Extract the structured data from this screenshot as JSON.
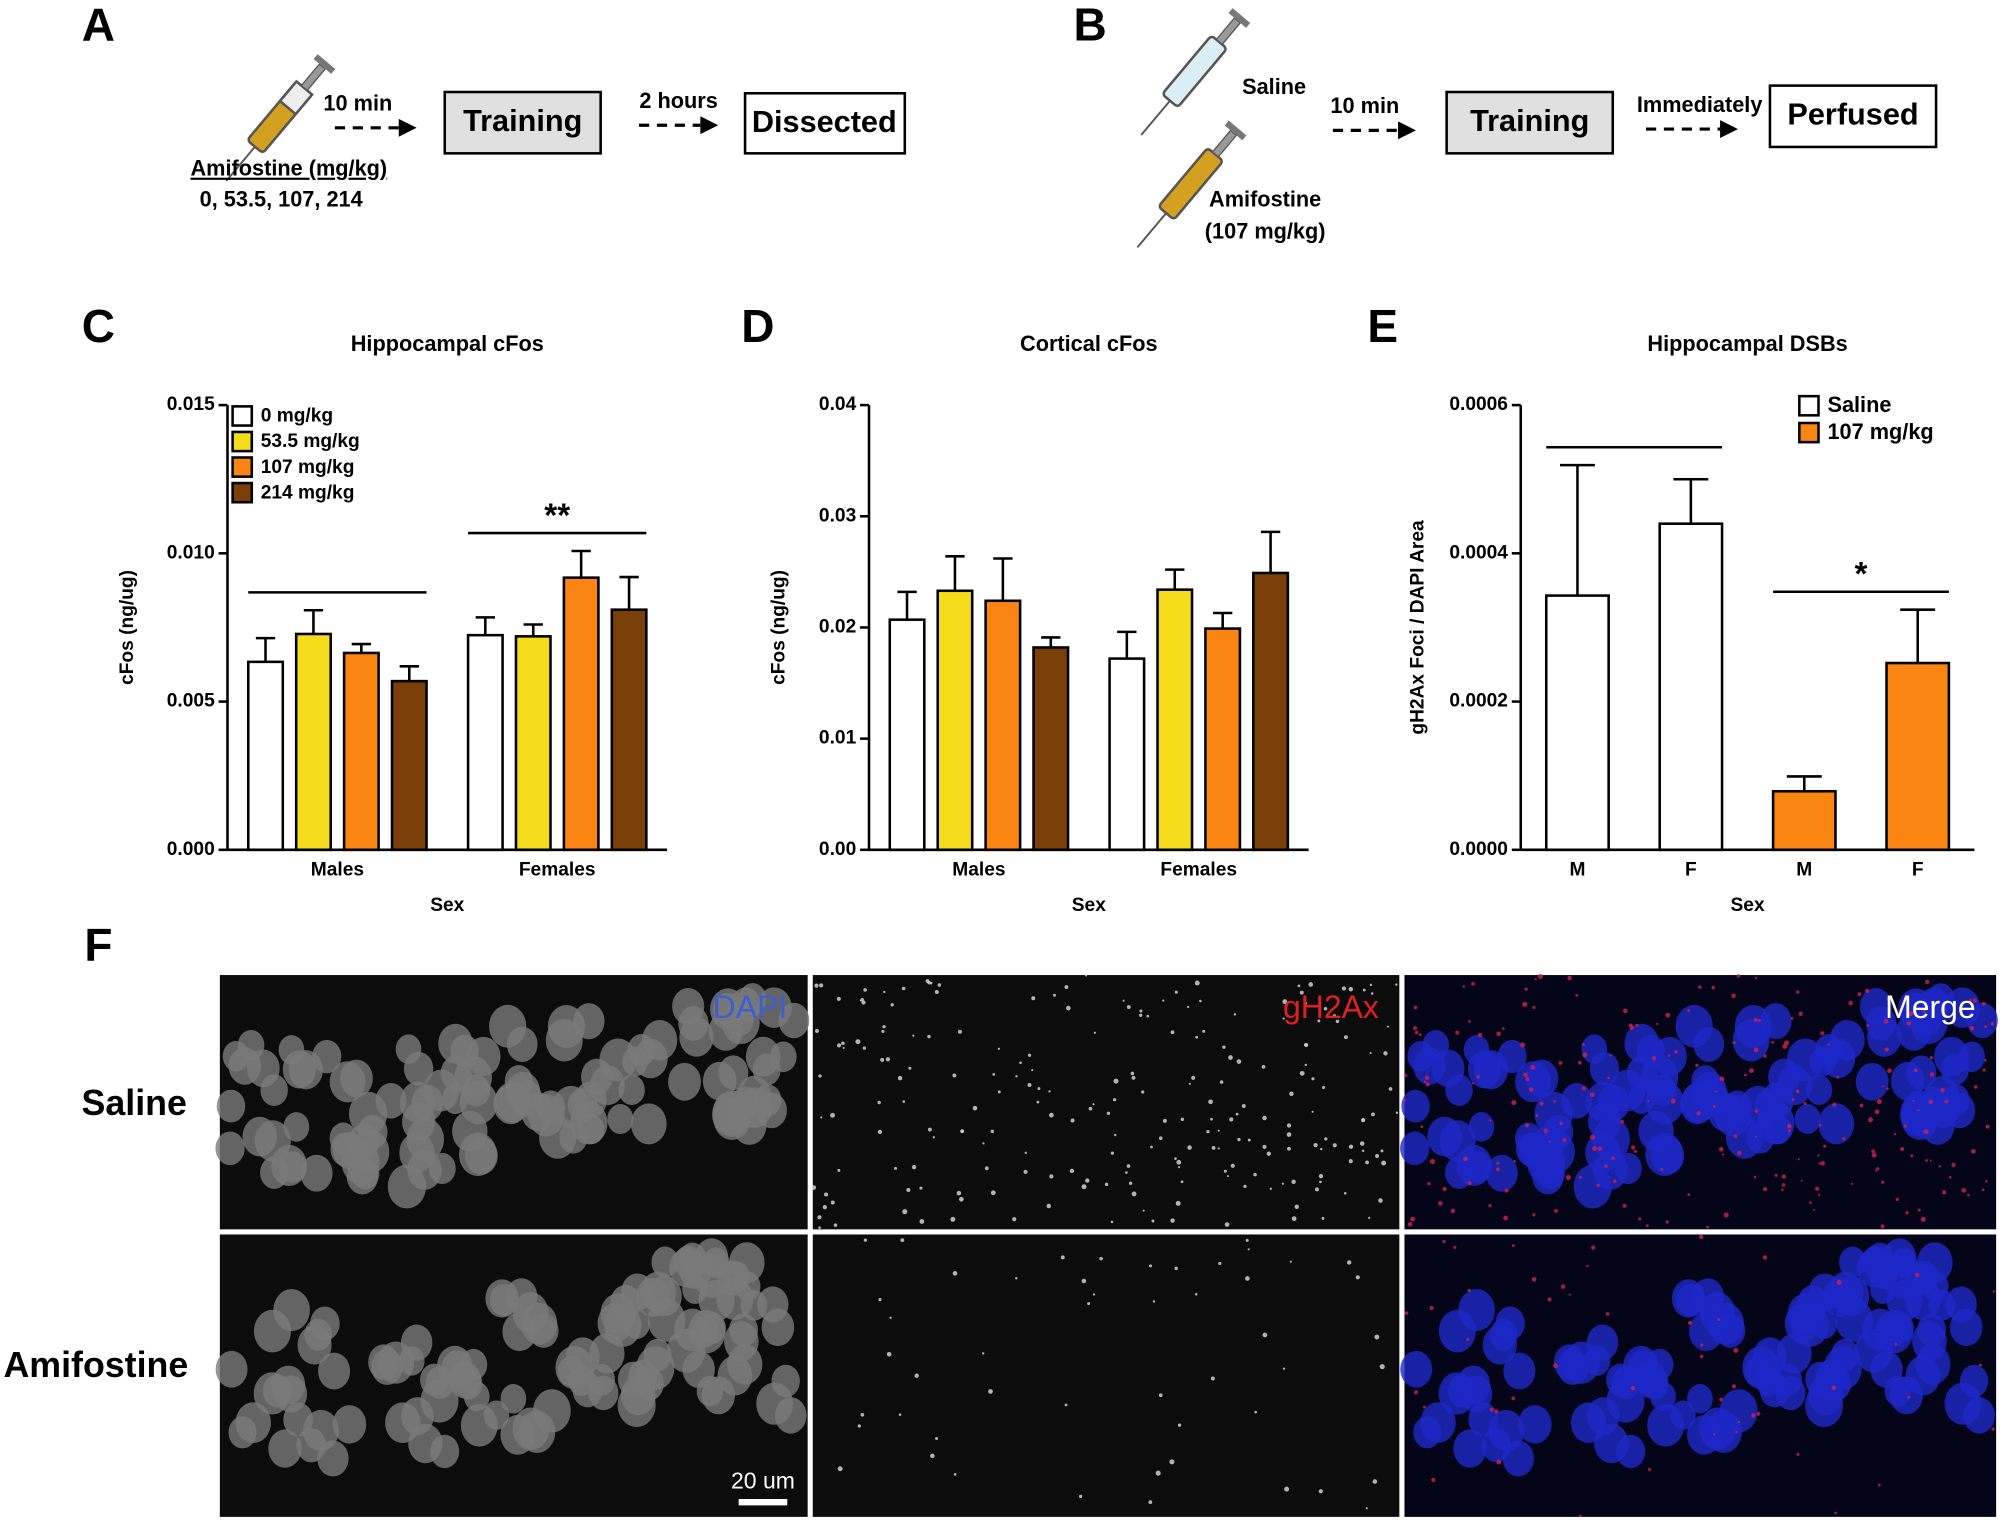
{
  "panel_labels": [
    "A",
    "B",
    "C",
    "D",
    "E",
    "F"
  ],
  "panel_a": {
    "drug": "Amifostine (mg/kg)",
    "doses": "0, 53.5, 107, 214",
    "step1": "10 min",
    "box1": "Training",
    "step2": "2 hours",
    "box2": "Dissected"
  },
  "panel_b": {
    "saline": "Saline",
    "amifostine": "Amifostine",
    "dose": "(107 mg/kg)",
    "step1": "10 min",
    "box1": "Training",
    "step2": "Immediately",
    "box2": "Perfused"
  },
  "chart_data": [
    {
      "type": "bar",
      "title": "Hippocampal cFos",
      "y_label": "cFos (ng/ug)",
      "x_label": "Sex",
      "categories": [
        "Males",
        "Females"
      ],
      "series": [
        {
          "name": "0 mg/kg",
          "color": "#ffffff",
          "values": [
            0.00634,
            0.00724
          ],
          "errors": [
            0.0008,
            0.0006
          ]
        },
        {
          "name": "53.5 mg/kg",
          "color": "#f5dc1a",
          "values": [
            0.00728,
            0.0072
          ],
          "errors": [
            0.0008,
            0.0004
          ]
        },
        {
          "name": "107 mg/kg",
          "color": "#fb8513",
          "values": [
            0.00664,
            0.00918
          ],
          "errors": [
            0.0003,
            0.0009
          ]
        },
        {
          "name": "214 mg/kg",
          "color": "#7b3f0a",
          "values": [
            0.00569,
            0.0081
          ],
          "errors": [
            0.0005,
            0.0011
          ]
        }
      ],
      "ylim": [
        0,
        0.015
      ],
      "yticks": [
        {
          "value": 0,
          "label": "0.000"
        },
        0.005,
        {
          "value": 0.01,
          "label": "0.010"
        },
        0.015
      ],
      "legend": "upper left",
      "brackets": [
        {
          "category": 0
        },
        {
          "category": 1,
          "label": "**"
        }
      ]
    },
    {
      "type": "bar",
      "title": "Cortical cFos",
      "y_label": "cFos (ng/ug)",
      "x_label": "Sex",
      "categories": [
        "Males",
        "Females"
      ],
      "series": [
        {
          "color": "#ffffff",
          "values": [
            0.0207,
            0.0172
          ],
          "errors": [
            0.0025,
            0.0024
          ]
        },
        {
          "color": "#f5dc1a",
          "values": [
            0.0233,
            0.0234
          ],
          "errors": [
            0.0031,
            0.0018
          ]
        },
        {
          "color": "#fb8513",
          "values": [
            0.0224,
            0.0199
          ],
          "errors": [
            0.0038,
            0.0014
          ]
        },
        {
          "color": "#7b3f0a",
          "values": [
            0.0182,
            0.0249
          ],
          "errors": [
            0.0009,
            0.0037
          ]
        }
      ],
      "ylim": [
        0,
        0.04
      ],
      "yticks": [
        {
          "value": 0,
          "label": "0.00"
        },
        {
          "value": 0.01,
          "label": "0.01"
        },
        {
          "value": 0.02,
          "label": "0.02"
        },
        {
          "value": 0.03,
          "label": "0.03"
        },
        {
          "value": 0.04,
          "label": "0.04"
        }
      ]
    },
    {
      "type": "bar",
      "title": "Hippocampal DSBs",
      "y_label": "gH2Ax Foci / DAPI Area",
      "x_label": "Sex",
      "categories": [
        "M",
        "F",
        "M",
        "F"
      ],
      "series": [
        {
          "name": "Saline",
          "color": "#ffffff",
          "values": [
            0.000343,
            0.00044,
            null,
            null
          ],
          "errors": [
            0.000176,
            6e-05,
            null,
            null
          ]
        },
        {
          "name": "107 mg/kg",
          "color": "#fb8513",
          "values": [
            null,
            null,
            7.9e-05,
            0.000252
          ],
          "errors": [
            null,
            null,
            2e-05,
            7.2e-05
          ]
        }
      ],
      "ylim": [
        0,
        0.0006
      ],
      "yticks": [
        {
          "value": 0,
          "label": "0.0000"
        },
        {
          "value": 0.0002,
          "label": "0.0002"
        },
        {
          "value": 0.0004,
          "label": "0.0004"
        },
        {
          "value": 0.0006,
          "label": "0.0006"
        }
      ],
      "legend": "upper right",
      "brackets": [
        {
          "series": 0
        },
        {
          "series": 1,
          "label": "*"
        }
      ]
    }
  ],
  "panel_f": {
    "channels": [
      "DAPI",
      "gH2Ax",
      "Merge"
    ],
    "rows": [
      "Saline",
      "Amifostine"
    ],
    "scale_bar": "20 um"
  }
}
